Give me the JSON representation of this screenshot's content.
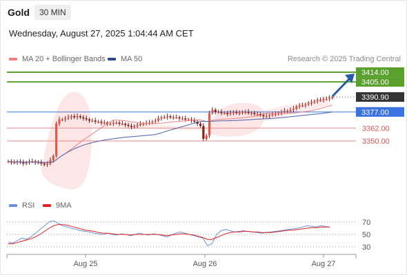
{
  "header": {
    "title": "Gold",
    "timeframe": "30 MIN",
    "datetime": "Wednesday, August 27, 2025 1:04:44 AM CET"
  },
  "legend": {
    "ma20_label": "MA 20 + Bollinger Bands",
    "ma50_label": "MA 50",
    "research": "Research © 2025 Trading Central",
    "rsi_label": "RSI",
    "ma9_label": "9MA"
  },
  "colors": {
    "candle": "#c0392b",
    "ma20": "#f08080",
    "ma50": "#4a5fa8",
    "bollinger_fill": "#fde3e3",
    "resistance": "#5aa02c",
    "support_blue": "#3b73e0",
    "support_red": "#d9534f",
    "rsi": "#6b8fe0",
    "rsi_ma9": "#e02020",
    "arrow": "#2a5aa6"
  },
  "chart_data": [
    {
      "type": "candlestick",
      "instrument": "Gold",
      "timeframe": "30 MIN",
      "x_ticks": [
        "Aug 25",
        "Aug 26",
        "Aug 27"
      ],
      "last_price": 3390.9,
      "levels": [
        {
          "label": "3414.00",
          "value": 3414.0,
          "kind": "resistance",
          "color": "#5aa02c"
        },
        {
          "label": "3405.00",
          "value": 3405.0,
          "kind": "resistance",
          "color": "#5aa02c"
        },
        {
          "label": "3390.90",
          "value": 3390.9,
          "kind": "last",
          "color": "#333333"
        },
        {
          "label": "3377.00",
          "value": 3377.0,
          "kind": "pivot",
          "color": "#3b73e0"
        },
        {
          "label": "3362.00",
          "value": 3362.0,
          "kind": "support",
          "color": "#d9534f"
        },
        {
          "label": "3350.00",
          "value": 3350.0,
          "kind": "support",
          "color": "#d9534f"
        }
      ],
      "ylim": [
        3326,
        3420
      ],
      "close_path": [
        3331,
        3330,
        3330,
        3331,
        3330,
        3329,
        3330,
        3331,
        3331,
        3330,
        3330,
        3329,
        3328,
        3329,
        3332,
        3336,
        3366,
        3370,
        3370,
        3371,
        3372,
        3373,
        3372,
        3373,
        3372,
        3371,
        3370,
        3369,
        3369,
        3368,
        3368,
        3367,
        3367,
        3366,
        3366,
        3367,
        3367,
        3366,
        3366,
        3365,
        3364,
        3363,
        3364,
        3365,
        3366,
        3366,
        3367,
        3367,
        3368,
        3369,
        3371,
        3372,
        3372,
        3373,
        3372,
        3372,
        3372,
        3371,
        3371,
        3370,
        3370,
        3369,
        3368,
        3366,
        3364,
        3352,
        3355,
        3376,
        3379,
        3377,
        3377,
        3376,
        3376,
        3375,
        3376,
        3377,
        3376,
        3376,
        3377,
        3377,
        3376,
        3376,
        3375,
        3375,
        3374,
        3373,
        3373,
        3374,
        3375,
        3375,
        3376,
        3377,
        3378,
        3378,
        3379,
        3380,
        3382,
        3383,
        3383,
        3384,
        3385,
        3386,
        3387,
        3388,
        3388,
        3389,
        3389,
        3390,
        3391
      ],
      "bollinger": {
        "upper_hint": 3400,
        "lower_hint": 3318
      },
      "arrow_target": 3414.0
    },
    {
      "type": "line",
      "indicator": "RSI",
      "series": [
        {
          "name": "RSI",
          "color": "#6b8fe0",
          "values": [
            38,
            36,
            40,
            44,
            42,
            46,
            52,
            58,
            64,
            70,
            72,
            68,
            64,
            62,
            60,
            58,
            56,
            55,
            54,
            52,
            51,
            50,
            52,
            50,
            49,
            51,
            50,
            48,
            50,
            52,
            50,
            49,
            51,
            50,
            48,
            46,
            49,
            52,
            54,
            52,
            50,
            48,
            46,
            44,
            32,
            35,
            50,
            56,
            58,
            56,
            54,
            55,
            56,
            55,
            54,
            53,
            52,
            53,
            54,
            55,
            56,
            57,
            58,
            59,
            60,
            62,
            64,
            63,
            62,
            64,
            63,
            62
          ]
        },
        {
          "name": "9MA",
          "color": "#e02020",
          "values": [
            35,
            35,
            37,
            39,
            41,
            43,
            46,
            50,
            55,
            60,
            64,
            66,
            66,
            65,
            63,
            61,
            59,
            57,
            56,
            55,
            53,
            52,
            52,
            51,
            50,
            50,
            50,
            49,
            50,
            50,
            50,
            50,
            50,
            50,
            49,
            48,
            49,
            50,
            51,
            51,
            50,
            49,
            47,
            45,
            42,
            42,
            45,
            48,
            51,
            53,
            54,
            54,
            55,
            55,
            54,
            54,
            53,
            53,
            53,
            54,
            55,
            56,
            57,
            57,
            58,
            59,
            60,
            61,
            61,
            62,
            62,
            62
          ]
        }
      ],
      "y_ticks": [
        70,
        50,
        30
      ],
      "ylim": [
        20,
        82
      ]
    }
  ]
}
